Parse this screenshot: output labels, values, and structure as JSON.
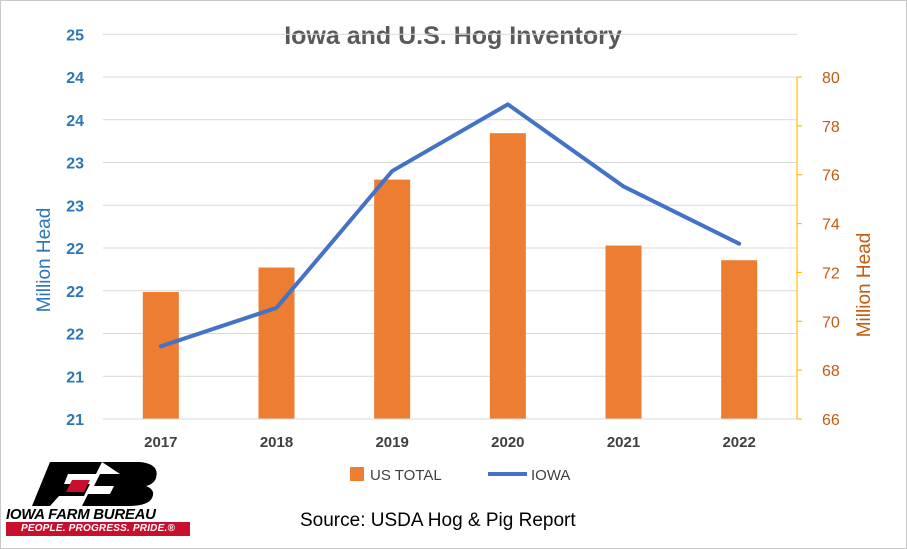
{
  "chart_data": {
    "type": "bar+line",
    "title": "Iowa and U.S. Hog Inventory",
    "categories": [
      "2017",
      "2018",
      "2019",
      "2020",
      "2021",
      "2022"
    ],
    "series": [
      {
        "name": "US TOTAL",
        "type": "bar",
        "axis": "right",
        "color": "#ed7d31",
        "values": [
          71.2,
          72.2,
          75.8,
          77.7,
          73.1,
          72.5
        ]
      },
      {
        "name": "IOWA",
        "type": "line",
        "axis": "left",
        "color": "#4472c4",
        "values": [
          21.85,
          22.3,
          23.9,
          24.68,
          23.72,
          23.05
        ]
      }
    ],
    "y_left": {
      "label": "Million Head",
      "min": 21,
      "max": 25,
      "step": 0.5,
      "tick_labels": [
        "21",
        "21",
        "22",
        "22",
        "22",
        "23",
        "23",
        "24",
        "24",
        "25",
        "25"
      ]
    },
    "y_right": {
      "label": "Million Head",
      "min": 66,
      "max": 80,
      "step": 2,
      "tick_labels": [
        "66",
        "68",
        "70",
        "72",
        "74",
        "76",
        "78",
        "80"
      ]
    },
    "grid": true,
    "legend_position": "bottom"
  },
  "footer": {
    "source": "Source: USDA Hog & Pig Report",
    "logo_name": "IOWA FARM BUREAU",
    "logo_tagline": "PEOPLE. PROGRESS. PRIDE.®"
  }
}
